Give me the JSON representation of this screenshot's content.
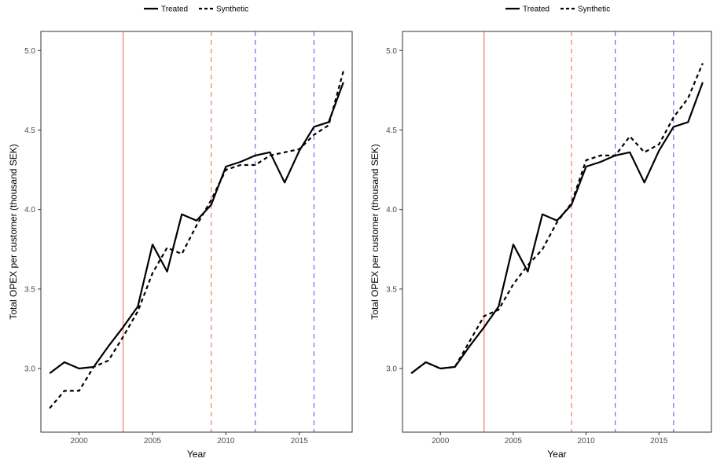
{
  "colors": {
    "treated": "#000000",
    "synthetic": "#000000",
    "vline_red": "#F8766D",
    "vline_blue": "#6A6AF5",
    "panel_border": "#333333",
    "tick_text": "#4d4d4d"
  },
  "chart_data": [
    {
      "type": "line",
      "xlabel": "Year",
      "ylabel": "Total OPEX per customer (thousand SEK)",
      "xlim": [
        1997.4,
        2018.6
      ],
      "ylim": [
        2.6,
        5.12
      ],
      "xticks": [
        2000,
        2005,
        2010,
        2015
      ],
      "yticks": [
        3.0,
        3.5,
        4.0,
        4.5,
        5.0
      ],
      "xtick_labels": [
        "2000",
        "2005",
        "2010",
        "2015"
      ],
      "ytick_labels": [
        "3.0",
        "3.5",
        "4.0",
        "4.5",
        "5.0"
      ],
      "grid": false,
      "legend_position": "top",
      "x": [
        1998,
        1999,
        2000,
        2001,
        2002,
        2003,
        2004,
        2005,
        2006,
        2007,
        2008,
        2009,
        2010,
        2011,
        2012,
        2013,
        2014,
        2015,
        2016,
        2017,
        2018
      ],
      "series": [
        {
          "name": "Treated",
          "style": "solid",
          "values": [
            2.97,
            3.04,
            3.0,
            3.01,
            3.14,
            3.26,
            3.39,
            3.78,
            3.61,
            3.97,
            3.93,
            4.03,
            4.27,
            4.3,
            4.34,
            4.36,
            4.17,
            4.37,
            4.52,
            4.55,
            4.8
          ]
        },
        {
          "name": "Synthetic",
          "style": "dashed",
          "values": [
            2.75,
            2.86,
            2.86,
            3.01,
            3.05,
            3.2,
            3.36,
            3.6,
            3.76,
            3.72,
            3.9,
            4.06,
            4.25,
            4.28,
            4.28,
            4.34,
            4.36,
            4.38,
            4.47,
            4.53,
            4.87
          ]
        }
      ],
      "vlines": [
        {
          "x": 2003,
          "color": "red",
          "style": "solid"
        },
        {
          "x": 2009,
          "color": "red",
          "style": "dashed"
        },
        {
          "x": 2012,
          "color": "blue",
          "style": "dashed"
        },
        {
          "x": 2016,
          "color": "blue",
          "style": "dashed"
        }
      ]
    },
    {
      "type": "line",
      "xlabel": "Year",
      "ylabel": "Total OPEX per customer (thousand SEK)",
      "xlim": [
        1997.4,
        2018.6
      ],
      "ylim": [
        2.6,
        5.12
      ],
      "xticks": [
        2000,
        2005,
        2010,
        2015
      ],
      "yticks": [
        3.0,
        3.5,
        4.0,
        4.5,
        5.0
      ],
      "xtick_labels": [
        "2000",
        "2005",
        "2010",
        "2015"
      ],
      "ytick_labels": [
        "3.0",
        "3.5",
        "4.0",
        "4.5",
        "5.0"
      ],
      "grid": false,
      "legend_position": "top",
      "x": [
        1998,
        1999,
        2000,
        2001,
        2002,
        2003,
        2004,
        2005,
        2006,
        2007,
        2008,
        2009,
        2010,
        2011,
        2012,
        2013,
        2014,
        2015,
        2016,
        2017,
        2018
      ],
      "series": [
        {
          "name": "Treated",
          "style": "solid",
          "values": [
            2.97,
            3.04,
            3.0,
            3.01,
            3.14,
            3.26,
            3.39,
            3.78,
            3.61,
            3.97,
            3.93,
            4.03,
            4.27,
            4.3,
            4.34,
            4.36,
            4.17,
            4.37,
            4.52,
            4.55,
            4.8
          ]
        },
        {
          "name": "Synthetic",
          "style": "dashed",
          "values": [
            2.97,
            3.04,
            3.0,
            3.01,
            3.17,
            3.33,
            3.37,
            3.53,
            3.65,
            3.75,
            3.92,
            4.04,
            4.31,
            4.34,
            4.34,
            4.46,
            4.36,
            4.41,
            4.58,
            4.7,
            4.92
          ]
        }
      ],
      "vlines": [
        {
          "x": 2003,
          "color": "red",
          "style": "solid"
        },
        {
          "x": 2009,
          "color": "red",
          "style": "dashed"
        },
        {
          "x": 2012,
          "color": "blue",
          "style": "dashed"
        },
        {
          "x": 2016,
          "color": "blue",
          "style": "dashed"
        }
      ]
    }
  ]
}
